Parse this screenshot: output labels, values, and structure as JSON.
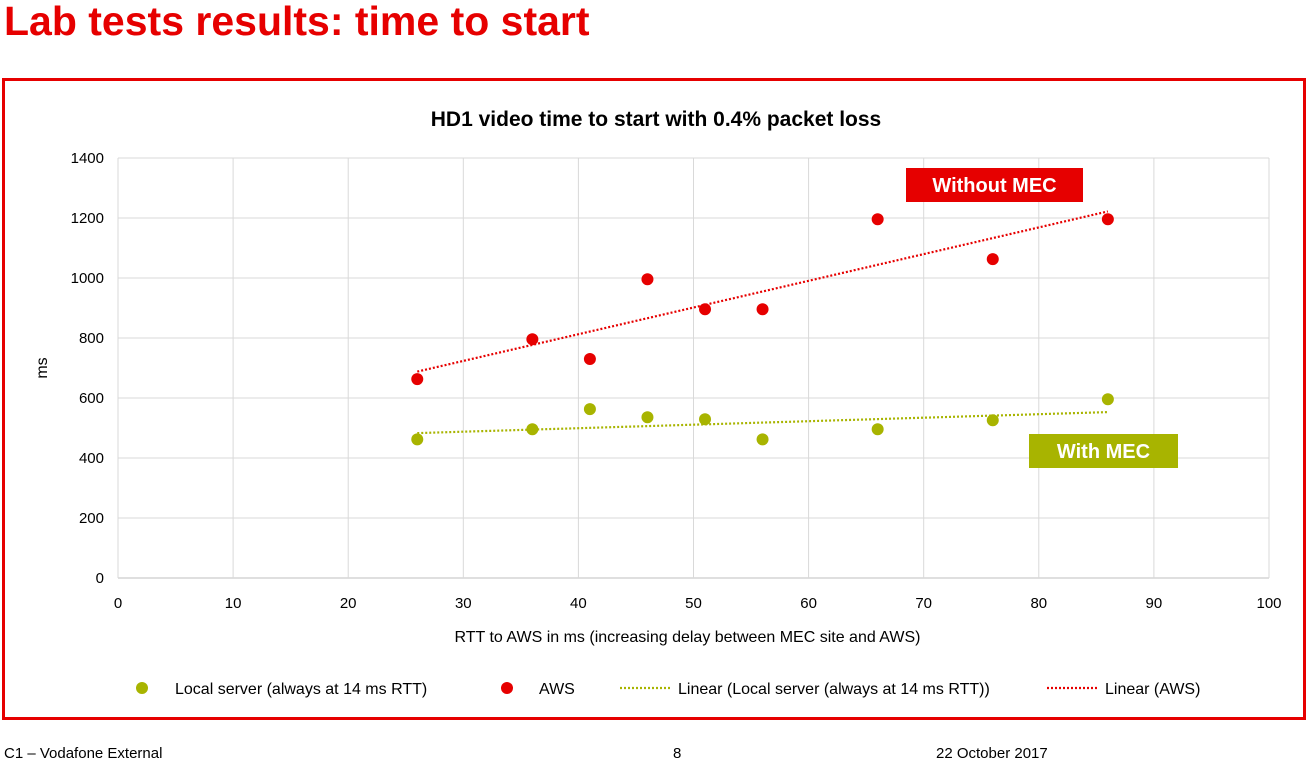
{
  "page": {
    "title": "Lab tests results: time to start"
  },
  "footer": {
    "classification": "C1 – Vodafone External",
    "page_number": "8",
    "date": "22 October 2017"
  },
  "colors": {
    "title_red": "#e60000",
    "aws_red": "#e60000",
    "local_green": "#a8b400",
    "grid": "#d9d9d9",
    "axis": "#bfbfbf"
  },
  "chart_data": {
    "type": "scatter",
    "title": "HD1 video time to start with 0.4% packet loss",
    "xlabel": "RTT to AWS in ms (increasing delay between MEC site and AWS)",
    "ylabel": "ms",
    "xlim": [
      0,
      100
    ],
    "ylim": [
      0,
      1400
    ],
    "x_ticks": [
      "0",
      "10",
      "20",
      "30",
      "40",
      "50",
      "60",
      "70",
      "80",
      "90",
      "100"
    ],
    "y_ticks": [
      "0",
      "200",
      "400",
      "600",
      "800",
      "1000",
      "1200",
      "1400"
    ],
    "grid": true,
    "legend_position": "bottom",
    "series": [
      {
        "name": "Local server (always at 14 ms RTT)",
        "color": "#a8b400",
        "points": [
          {
            "x": 26,
            "y": 462
          },
          {
            "x": 36,
            "y": 496
          },
          {
            "x": 41,
            "y": 563
          },
          {
            "x": 46,
            "y": 536
          },
          {
            "x": 51,
            "y": 529
          },
          {
            "x": 56,
            "y": 462
          },
          {
            "x": 66,
            "y": 496
          },
          {
            "x": 76,
            "y": 526
          },
          {
            "x": 86,
            "y": 596
          }
        ]
      },
      {
        "name": "AWS",
        "color": "#e60000",
        "points": [
          {
            "x": 26,
            "y": 663
          },
          {
            "x": 36,
            "y": 796
          },
          {
            "x": 41,
            "y": 730
          },
          {
            "x": 46,
            "y": 996
          },
          {
            "x": 51,
            "y": 896
          },
          {
            "x": 56,
            "y": 896
          },
          {
            "x": 66,
            "y": 1196
          },
          {
            "x": 76,
            "y": 1063
          },
          {
            "x": 86,
            "y": 1196
          }
        ]
      }
    ],
    "trendlines": [
      {
        "name": "Linear (Local server (always at 14 ms RTT))",
        "color": "#a8b400",
        "x": [
          26,
          86
        ],
        "y": [
          483,
          553
        ]
      },
      {
        "name": "Linear (AWS)",
        "color": "#e60000",
        "x": [
          26,
          86
        ],
        "y": [
          688,
          1222
        ]
      }
    ],
    "annotations": [
      {
        "text": "Without MEC",
        "color": "#e60000",
        "near_series": "AWS"
      },
      {
        "text": "With MEC",
        "color": "#a8b400",
        "near_series": "Local server"
      }
    ]
  }
}
